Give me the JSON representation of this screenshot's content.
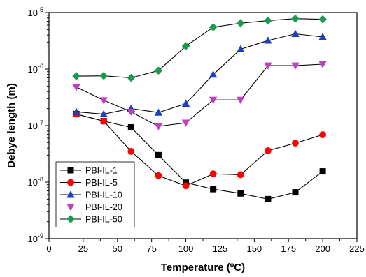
{
  "chart_data": {
    "type": "line",
    "xlabel": "Temperature (ºC)",
    "ylabel": "Debye length (m)",
    "xlim": [
      0,
      225
    ],
    "ylim": [
      1e-09,
      1e-05
    ],
    "yscale": "log",
    "x_ticks": [
      "0",
      "25",
      "50",
      "75",
      "100",
      "125",
      "150",
      "175",
      "200",
      "225"
    ],
    "y_ticks": [
      {
        "base": "10",
        "exp": "-9"
      },
      {
        "base": "10",
        "exp": "-8"
      },
      {
        "base": "10",
        "exp": "-7"
      },
      {
        "base": "10",
        "exp": "-6"
      },
      {
        "base": "10",
        "exp": "-5"
      }
    ],
    "grid": false,
    "legend_position": "bottom-left",
    "x": [
      20,
      40,
      60,
      80,
      100,
      120,
      140,
      160,
      180,
      200
    ],
    "series": [
      {
        "name": "PBI-IL-1",
        "color": "#000000",
        "marker": "square",
        "values": [
          1.6e-07,
          1.2e-07,
          9.3e-08,
          3e-08,
          9.8e-09,
          7.5e-09,
          6.3e-09,
          5e-09,
          6.6e-09,
          1.55e-08
        ]
      },
      {
        "name": "PBI-IL-5",
        "color": "#ff0000",
        "marker": "circle",
        "values": [
          1.6e-07,
          1.2e-07,
          3.5e-08,
          1.3e-08,
          8.6e-09,
          1.4e-08,
          1.35e-08,
          3.6e-08,
          4.9e-08,
          6.9e-08
        ]
      },
      {
        "name": "PBI-IL-10",
        "color": "#1f3fbf",
        "marker": "triangle-up",
        "values": [
          1.75e-07,
          1.6e-07,
          2e-07,
          1.7e-07,
          2.45e-07,
          8e-07,
          2.25e-06,
          3.2e-06,
          4.2e-06,
          3.7e-06
        ]
      },
      {
        "name": "PBI-IL-20",
        "color": "#bf3fbf",
        "marker": "triangle-down",
        "values": [
          4.8e-07,
          2.8e-07,
          1.75e-07,
          9.7e-08,
          1.12e-07,
          2.85e-07,
          2.85e-07,
          1.15e-06,
          1.15e-06,
          1.22e-06
        ]
      },
      {
        "name": "PBI-IL-50",
        "color": "#1a9a4a",
        "marker": "diamond",
        "values": [
          7.5e-07,
          7.6e-07,
          7e-07,
          9.4e-07,
          2.55e-06,
          5.5e-06,
          6.5e-06,
          7.2e-06,
          7.8e-06,
          7.6e-06
        ]
      }
    ]
  }
}
